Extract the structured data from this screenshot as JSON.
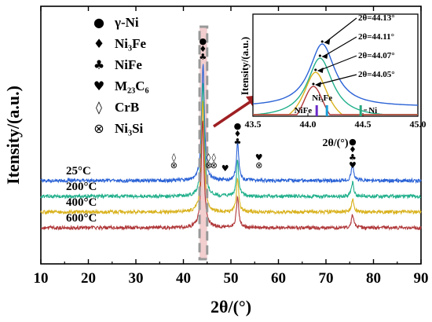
{
  "chart_data": {
    "type": "line",
    "xlabel": "2θ/(°)",
    "ylabel": "Itensity/(a.u.)",
    "xlim": [
      10,
      90
    ],
    "x_ticks": [
      "10",
      "20",
      "30",
      "40",
      "50",
      "60",
      "70",
      "80",
      "90"
    ],
    "series": [
      {
        "label": "25°C",
        "color": "#2a62d6",
        "baseline": 0.0,
        "peaks": [
          {
            "x": 44.13,
            "h": 9.2
          },
          {
            "x": 51.4,
            "h": 3.0
          },
          {
            "x": 75.6,
            "h": 1.3
          }
        ]
      },
      {
        "label": "200°C",
        "color": "#22b08c",
        "baseline": -1.25,
        "peaks": [
          {
            "x": 44.11,
            "h": 9.0
          },
          {
            "x": 51.4,
            "h": 2.8
          },
          {
            "x": 75.6,
            "h": 1.1
          }
        ]
      },
      {
        "label": "400°C",
        "color": "#d9b21e",
        "baseline": -2.5,
        "peaks": [
          {
            "x": 44.07,
            "h": 8.8
          },
          {
            "x": 51.4,
            "h": 2.6
          },
          {
            "x": 75.6,
            "h": 1.0
          }
        ]
      },
      {
        "label": "600°C",
        "color": "#b0383a",
        "baseline": -3.75,
        "peaks": [
          {
            "x": 44.05,
            "h": 8.6
          },
          {
            "x": 51.4,
            "h": 2.5
          },
          {
            "x": 75.6,
            "h": 1.0
          }
        ]
      }
    ],
    "legend": [
      {
        "symbol": "●",
        "label": "γ-Ni"
      },
      {
        "symbol": "♦",
        "label": "Ni₃Fe"
      },
      {
        "symbol": "♣",
        "label": "NiFe"
      },
      {
        "symbol": "♥",
        "label": "M₂₃C₆"
      },
      {
        "symbol": "◊",
        "label": "CrB"
      },
      {
        "symbol": "⊗",
        "label": "Ni₃Si"
      }
    ],
    "phase_markers": [
      {
        "x": 44.1,
        "symbols": [
          "●",
          "♦",
          "♣"
        ]
      },
      {
        "x": 51.4,
        "symbols": [
          "●",
          "♦",
          "♣"
        ]
      },
      {
        "x": 75.6,
        "symbols": [
          "●",
          "♦",
          "♣",
          "♥"
        ]
      },
      {
        "x": 38.0,
        "symbols": [
          "◊",
          "⊗"
        ]
      },
      {
        "x": 45.3,
        "symbols": [
          "◊",
          "⊗"
        ]
      },
      {
        "x": 46.4,
        "symbols": [
          "◊",
          "⊗"
        ]
      },
      {
        "x": 48.8,
        "symbols": [
          "♥"
        ]
      },
      {
        "x": 55.9,
        "symbols": [
          "♥",
          "⊗"
        ]
      }
    ],
    "highlight_range": [
      43.4,
      45.0
    ],
    "inset": {
      "xlim": [
        43.5,
        45.0
      ],
      "x_ticks": [
        "43.5",
        "44.0",
        "44.5",
        "45.0"
      ],
      "xlabel": "2θ/(°)",
      "ylabel": "Itensity/(a.u.)",
      "peaks": [
        {
          "label": "2θ=44.13°",
          "x": 44.13
        },
        {
          "label": "2θ=44.11°",
          "x": 44.11
        },
        {
          "label": "2θ=44.07°",
          "x": 44.07
        },
        {
          "label": "2θ=44.05°",
          "x": 44.05
        }
      ],
      "reference_lines": [
        {
          "label": "NiFe",
          "x": 44.08,
          "color": "#6a2cc9"
        },
        {
          "label": "Ni₃Fe",
          "x": 44.13,
          "color": "#1a9fd9"
        },
        {
          "label": "Ni",
          "x": 44.48,
          "color": "#2aa87d"
        }
      ]
    }
  }
}
